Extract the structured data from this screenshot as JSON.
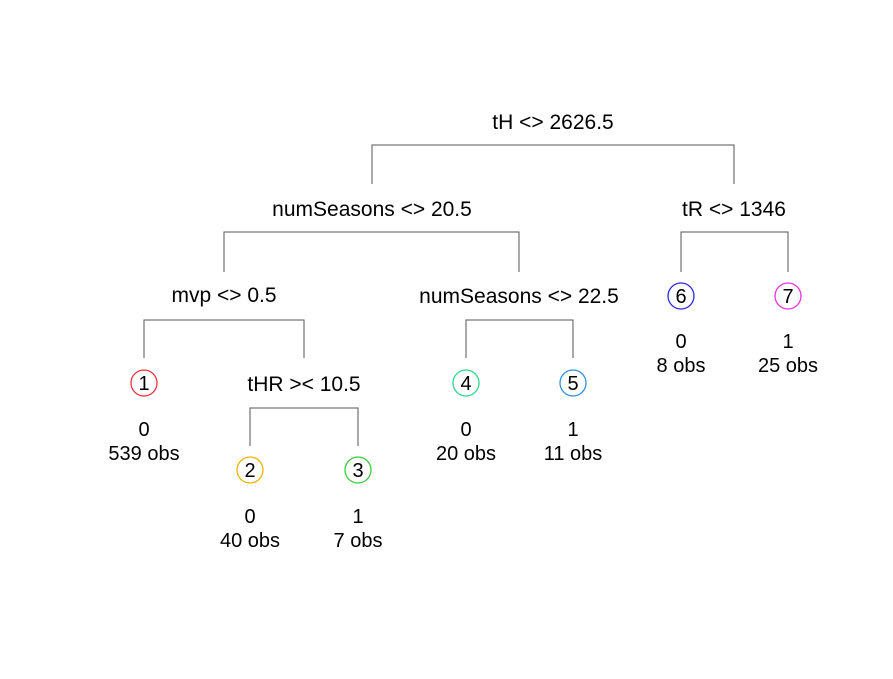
{
  "splits": {
    "root": {
      "label": "tH <> 2626.5"
    },
    "left": {
      "label": "numSeasons <> 20.5"
    },
    "right": {
      "label": "tR <> 1346"
    },
    "ll": {
      "label": "mvp <> 0.5"
    },
    "lr": {
      "label": "numSeasons <> 22.5"
    },
    "llr": {
      "label": "tHR >< 10.5"
    }
  },
  "leaves": [
    {
      "id": "1",
      "value": "0",
      "obs": "539 obs",
      "color": "#e8323c"
    },
    {
      "id": "2",
      "value": "0",
      "obs": "40 obs",
      "color": "#f0b400"
    },
    {
      "id": "3",
      "value": "1",
      "obs": "7 obs",
      "color": "#3ccc3c"
    },
    {
      "id": "4",
      "value": "0",
      "obs": "20 obs",
      "color": "#2ed68c"
    },
    {
      "id": "5",
      "value": "1",
      "obs": "11 obs",
      "color": "#2f8fe0"
    },
    {
      "id": "6",
      "value": "0",
      "obs": "8 obs",
      "color": "#2a2ae0"
    },
    {
      "id": "7",
      "value": "1",
      "obs": "25 obs",
      "color": "#e832e0"
    }
  ]
}
